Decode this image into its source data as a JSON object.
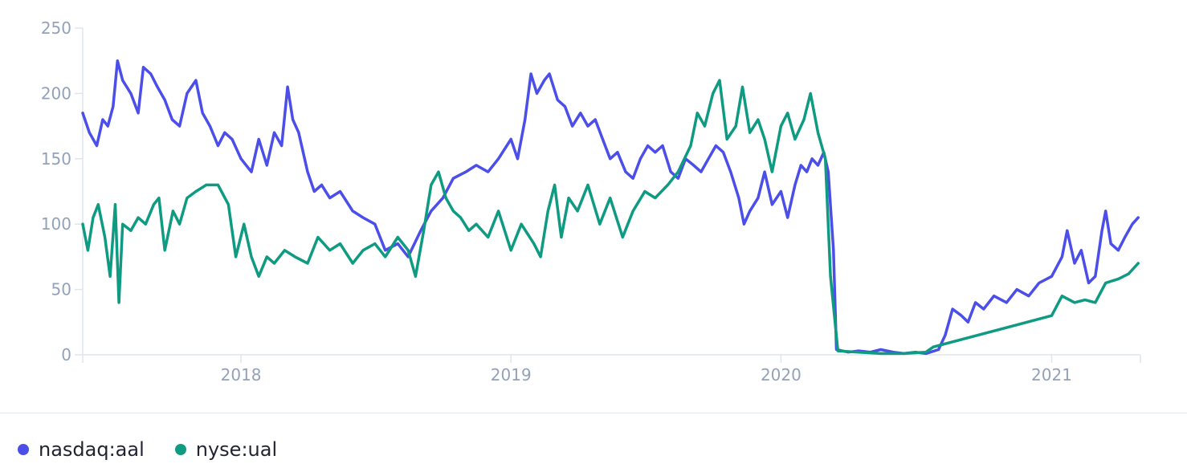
{
  "chart_data": {
    "type": "line",
    "x_range": [
      "2017-06-01",
      "2021-05-01"
    ],
    "ylim": [
      0,
      250
    ],
    "y_ticks": [
      0,
      50,
      100,
      150,
      200,
      250
    ],
    "x_ticks": [
      {
        "label": "2018",
        "date": "2018-01-01"
      },
      {
        "label": "2019",
        "date": "2019-01-01"
      },
      {
        "label": "2020",
        "date": "2020-01-01"
      },
      {
        "label": "2021",
        "date": "2021-01-01"
      }
    ],
    "legend_position": "bottom-left",
    "series": [
      {
        "name": "nasdaq:aal",
        "color": "#4b4ee8",
        "points": [
          [
            "2017-06-01",
            185
          ],
          [
            "2017-06-10",
            170
          ],
          [
            "2017-06-20",
            160
          ],
          [
            "2017-06-28",
            180
          ],
          [
            "2017-07-05",
            175
          ],
          [
            "2017-07-12",
            190
          ],
          [
            "2017-07-18",
            225
          ],
          [
            "2017-07-25",
            210
          ],
          [
            "2017-08-05",
            200
          ],
          [
            "2017-08-15",
            185
          ],
          [
            "2017-08-22",
            220
          ],
          [
            "2017-09-01",
            215
          ],
          [
            "2017-09-10",
            205
          ],
          [
            "2017-09-20",
            195
          ],
          [
            "2017-09-30",
            180
          ],
          [
            "2017-10-10",
            175
          ],
          [
            "2017-10-20",
            200
          ],
          [
            "2017-11-01",
            210
          ],
          [
            "2017-11-10",
            185
          ],
          [
            "2017-11-20",
            175
          ],
          [
            "2017-12-01",
            160
          ],
          [
            "2017-12-10",
            170
          ],
          [
            "2017-12-20",
            165
          ],
          [
            "2018-01-01",
            150
          ],
          [
            "2018-01-15",
            140
          ],
          [
            "2018-01-25",
            165
          ],
          [
            "2018-02-05",
            145
          ],
          [
            "2018-02-15",
            170
          ],
          [
            "2018-02-25",
            160
          ],
          [
            "2018-03-05",
            205
          ],
          [
            "2018-03-12",
            180
          ],
          [
            "2018-03-20",
            170
          ],
          [
            "2018-04-01",
            140
          ],
          [
            "2018-04-10",
            125
          ],
          [
            "2018-04-20",
            130
          ],
          [
            "2018-05-01",
            120
          ],
          [
            "2018-05-15",
            125
          ],
          [
            "2018-06-01",
            110
          ],
          [
            "2018-06-15",
            105
          ],
          [
            "2018-07-01",
            100
          ],
          [
            "2018-07-15",
            80
          ],
          [
            "2018-08-01",
            85
          ],
          [
            "2018-08-15",
            75
          ],
          [
            "2018-09-01",
            95
          ],
          [
            "2018-09-15",
            110
          ],
          [
            "2018-10-01",
            120
          ],
          [
            "2018-10-15",
            135
          ],
          [
            "2018-11-01",
            140
          ],
          [
            "2018-11-15",
            145
          ],
          [
            "2018-12-01",
            140
          ],
          [
            "2018-12-15",
            150
          ],
          [
            "2019-01-01",
            165
          ],
          [
            "2019-01-10",
            150
          ],
          [
            "2019-01-20",
            180
          ],
          [
            "2019-01-28",
            215
          ],
          [
            "2019-02-05",
            200
          ],
          [
            "2019-02-15",
            210
          ],
          [
            "2019-02-22",
            215
          ],
          [
            "2019-03-05",
            195
          ],
          [
            "2019-03-15",
            190
          ],
          [
            "2019-03-25",
            175
          ],
          [
            "2019-04-05",
            185
          ],
          [
            "2019-04-15",
            175
          ],
          [
            "2019-04-25",
            180
          ],
          [
            "2019-05-05",
            165
          ],
          [
            "2019-05-15",
            150
          ],
          [
            "2019-05-25",
            155
          ],
          [
            "2019-06-05",
            140
          ],
          [
            "2019-06-15",
            135
          ],
          [
            "2019-06-25",
            150
          ],
          [
            "2019-07-05",
            160
          ],
          [
            "2019-07-15",
            155
          ],
          [
            "2019-07-25",
            160
          ],
          [
            "2019-08-05",
            140
          ],
          [
            "2019-08-15",
            135
          ],
          [
            "2019-08-25",
            150
          ],
          [
            "2019-09-05",
            145
          ],
          [
            "2019-09-15",
            140
          ],
          [
            "2019-09-25",
            150
          ],
          [
            "2019-10-05",
            160
          ],
          [
            "2019-10-15",
            155
          ],
          [
            "2019-10-25",
            140
          ],
          [
            "2019-11-05",
            120
          ],
          [
            "2019-11-12",
            100
          ],
          [
            "2019-11-20",
            110
          ],
          [
            "2019-12-01",
            120
          ],
          [
            "2019-12-10",
            140
          ],
          [
            "2019-12-20",
            115
          ],
          [
            "2020-01-01",
            125
          ],
          [
            "2020-01-10",
            105
          ],
          [
            "2020-01-20",
            130
          ],
          [
            "2020-01-28",
            145
          ],
          [
            "2020-02-05",
            140
          ],
          [
            "2020-02-12",
            150
          ],
          [
            "2020-02-20",
            145
          ],
          [
            "2020-02-28",
            155
          ],
          [
            "2020-03-05",
            140
          ],
          [
            "2020-03-12",
            80
          ],
          [
            "2020-03-16",
            4
          ],
          [
            "2020-04-01",
            2
          ],
          [
            "2020-04-15",
            3
          ],
          [
            "2020-05-01",
            2
          ],
          [
            "2020-05-15",
            4
          ],
          [
            "2020-06-01",
            2
          ],
          [
            "2020-06-15",
            1
          ],
          [
            "2020-07-01",
            2
          ],
          [
            "2020-07-15",
            1
          ],
          [
            "2020-08-01",
            4
          ],
          [
            "2020-08-10",
            15
          ],
          [
            "2020-08-20",
            35
          ],
          [
            "2020-09-01",
            30
          ],
          [
            "2020-09-10",
            25
          ],
          [
            "2020-09-20",
            40
          ],
          [
            "2020-10-01",
            35
          ],
          [
            "2020-10-15",
            45
          ],
          [
            "2020-11-01",
            40
          ],
          [
            "2020-11-15",
            50
          ],
          [
            "2020-12-01",
            45
          ],
          [
            "2020-12-15",
            55
          ],
          [
            "2021-01-01",
            60
          ],
          [
            "2021-01-15",
            75
          ],
          [
            "2021-01-22",
            95
          ],
          [
            "2021-02-01",
            70
          ],
          [
            "2021-02-10",
            80
          ],
          [
            "2021-02-20",
            55
          ],
          [
            "2021-03-01",
            60
          ],
          [
            "2021-03-10",
            95
          ],
          [
            "2021-03-15",
            110
          ],
          [
            "2021-03-22",
            85
          ],
          [
            "2021-04-01",
            80
          ],
          [
            "2021-04-10",
            90
          ],
          [
            "2021-04-20",
            100
          ],
          [
            "2021-04-28",
            105
          ]
        ]
      },
      {
        "name": "nyse:ual",
        "color": "#0f9a82",
        "points": [
          [
            "2017-06-01",
            100
          ],
          [
            "2017-06-08",
            80
          ],
          [
            "2017-06-15",
            105
          ],
          [
            "2017-06-22",
            115
          ],
          [
            "2017-07-01",
            90
          ],
          [
            "2017-07-08",
            60
          ],
          [
            "2017-07-15",
            115
          ],
          [
            "2017-07-20",
            40
          ],
          [
            "2017-07-25",
            100
          ],
          [
            "2017-08-05",
            95
          ],
          [
            "2017-08-15",
            105
          ],
          [
            "2017-08-25",
            100
          ],
          [
            "2017-09-05",
            115
          ],
          [
            "2017-09-12",
            120
          ],
          [
            "2017-09-20",
            80
          ],
          [
            "2017-10-01",
            110
          ],
          [
            "2017-10-10",
            100
          ],
          [
            "2017-10-20",
            120
          ],
          [
            "2017-11-01",
            125
          ],
          [
            "2017-11-15",
            130
          ],
          [
            "2017-12-01",
            130
          ],
          [
            "2017-12-15",
            115
          ],
          [
            "2017-12-25",
            75
          ],
          [
            "2018-01-05",
            100
          ],
          [
            "2018-01-15",
            75
          ],
          [
            "2018-01-25",
            60
          ],
          [
            "2018-02-05",
            75
          ],
          [
            "2018-02-15",
            70
          ],
          [
            "2018-03-01",
            80
          ],
          [
            "2018-03-15",
            75
          ],
          [
            "2018-04-01",
            70
          ],
          [
            "2018-04-15",
            90
          ],
          [
            "2018-05-01",
            80
          ],
          [
            "2018-05-15",
            85
          ],
          [
            "2018-06-01",
            70
          ],
          [
            "2018-06-15",
            80
          ],
          [
            "2018-07-01",
            85
          ],
          [
            "2018-07-15",
            75
          ],
          [
            "2018-08-01",
            90
          ],
          [
            "2018-08-15",
            80
          ],
          [
            "2018-08-25",
            60
          ],
          [
            "2018-09-05",
            95
          ],
          [
            "2018-09-15",
            130
          ],
          [
            "2018-09-25",
            140
          ],
          [
            "2018-10-05",
            120
          ],
          [
            "2018-10-15",
            110
          ],
          [
            "2018-10-25",
            105
          ],
          [
            "2018-11-05",
            95
          ],
          [
            "2018-11-15",
            100
          ],
          [
            "2018-12-01",
            90
          ],
          [
            "2018-12-15",
            110
          ],
          [
            "2019-01-01",
            80
          ],
          [
            "2019-01-15",
            100
          ],
          [
            "2019-02-01",
            85
          ],
          [
            "2019-02-10",
            75
          ],
          [
            "2019-02-20",
            110
          ],
          [
            "2019-03-01",
            130
          ],
          [
            "2019-03-10",
            90
          ],
          [
            "2019-03-20",
            120
          ],
          [
            "2019-04-01",
            110
          ],
          [
            "2019-04-15",
            130
          ],
          [
            "2019-05-01",
            100
          ],
          [
            "2019-05-15",
            120
          ],
          [
            "2019-06-01",
            90
          ],
          [
            "2019-06-15",
            110
          ],
          [
            "2019-07-01",
            125
          ],
          [
            "2019-07-15",
            120
          ],
          [
            "2019-08-01",
            130
          ],
          [
            "2019-08-15",
            140
          ],
          [
            "2019-09-01",
            160
          ],
          [
            "2019-09-10",
            185
          ],
          [
            "2019-09-20",
            175
          ],
          [
            "2019-10-01",
            200
          ],
          [
            "2019-10-10",
            210
          ],
          [
            "2019-10-20",
            165
          ],
          [
            "2019-11-01",
            175
          ],
          [
            "2019-11-10",
            205
          ],
          [
            "2019-11-20",
            170
          ],
          [
            "2019-12-01",
            180
          ],
          [
            "2019-12-10",
            165
          ],
          [
            "2019-12-20",
            140
          ],
          [
            "2020-01-01",
            175
          ],
          [
            "2020-01-10",
            185
          ],
          [
            "2020-01-20",
            165
          ],
          [
            "2020-02-01",
            180
          ],
          [
            "2020-02-10",
            200
          ],
          [
            "2020-02-20",
            170
          ],
          [
            "2020-03-01",
            150
          ],
          [
            "2020-03-08",
            60
          ],
          [
            "2020-03-18",
            3
          ],
          [
            "2020-04-15",
            2
          ],
          [
            "2020-05-15",
            1
          ],
          [
            "2020-06-15",
            1
          ],
          [
            "2020-07-15",
            2
          ],
          [
            "2020-07-25",
            6
          ],
          [
            "2021-01-01",
            30
          ],
          [
            "2021-01-15",
            45
          ],
          [
            "2021-02-01",
            40
          ],
          [
            "2021-02-15",
            42
          ],
          [
            "2021-03-01",
            40
          ],
          [
            "2021-03-15",
            55
          ],
          [
            "2021-04-01",
            58
          ],
          [
            "2021-04-15",
            62
          ],
          [
            "2021-04-28",
            70
          ]
        ]
      }
    ]
  }
}
